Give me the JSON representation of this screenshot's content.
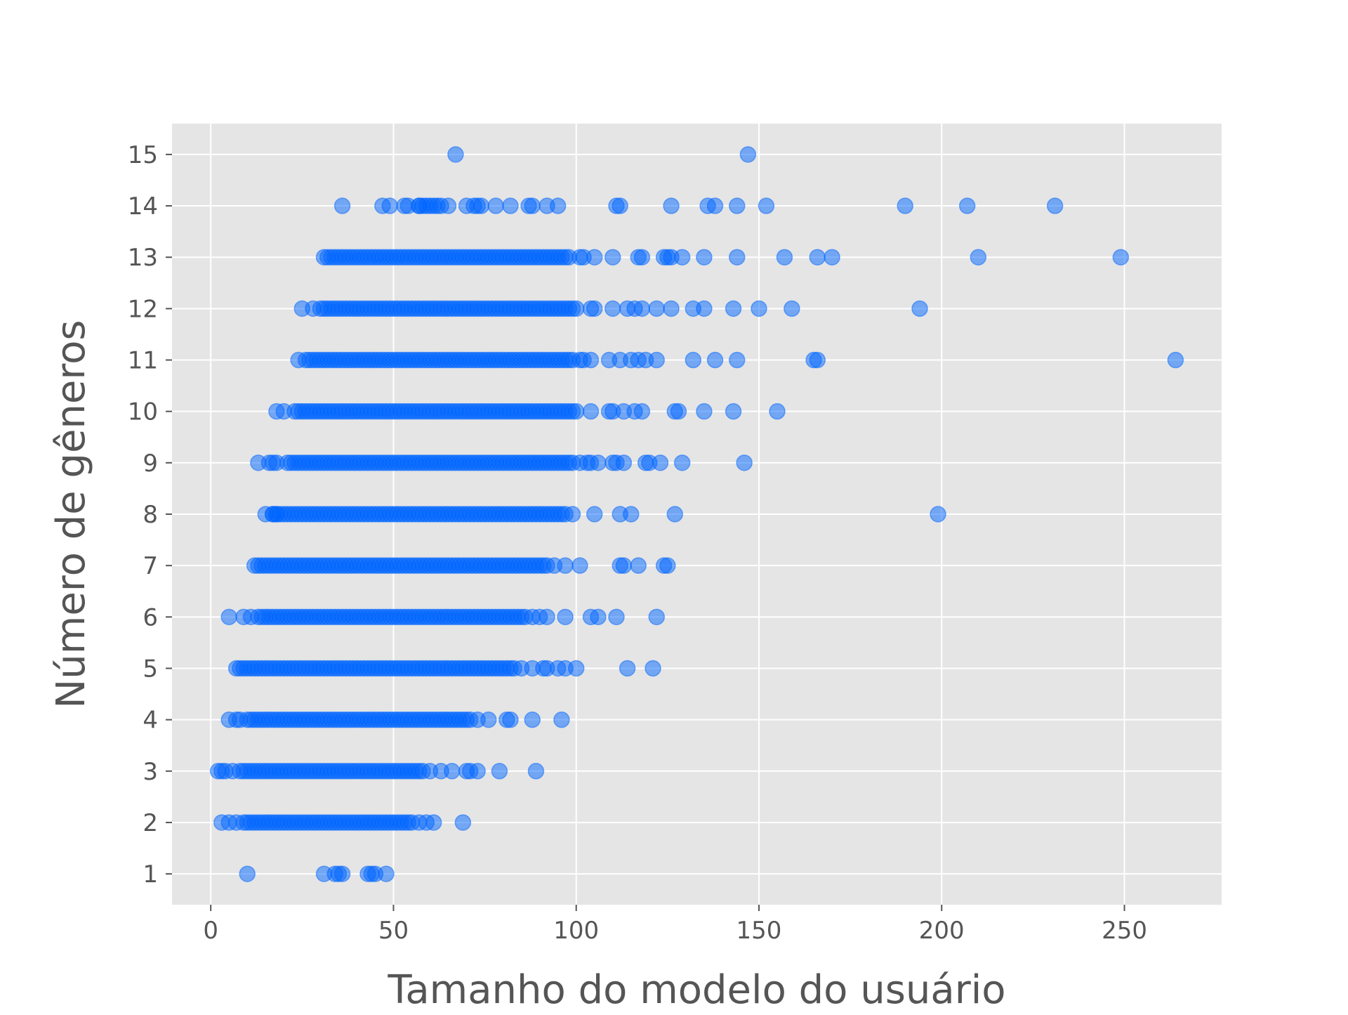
{
  "chart_data": {
    "type": "scatter",
    "title": "",
    "xlabel": "Tamanho do modelo do usuário",
    "ylabel": "Número de gêneros",
    "xlim": [
      -10.6,
      276.6
    ],
    "ylim": [
      0.4,
      15.6
    ],
    "xticks": [
      0,
      50,
      100,
      150,
      200,
      250
    ],
    "yticks": [
      1,
      2,
      3,
      4,
      5,
      6,
      7,
      8,
      9,
      10,
      11,
      12,
      13,
      14,
      15
    ],
    "grid": true,
    "style": "ggplot",
    "colors": {
      "plot_background": "#e5e5e5",
      "grid": "#ffffff",
      "marker": "#0066ff",
      "marker_alpha": 0.5,
      "tick_text": "#555555",
      "axis_label": "#555555"
    },
    "series": [
      {
        "marker": "circle",
        "ranges": [
          {
            "y": 2,
            "x_from": 10,
            "x_to": 55
          },
          {
            "y": 3,
            "x_from": 8,
            "x_to": 58
          },
          {
            "y": 4,
            "x_from": 10,
            "x_to": 70
          },
          {
            "y": 5,
            "x_from": 9,
            "x_to": 82
          },
          {
            "y": 6,
            "x_from": 13,
            "x_to": 86
          },
          {
            "y": 7,
            "x_from": 13,
            "x_to": 92
          },
          {
            "y": 8,
            "x_from": 17,
            "x_to": 97
          },
          {
            "y": 9,
            "x_from": 21,
            "x_to": 99
          },
          {
            "y": 10,
            "x_from": 24,
            "x_to": 100
          },
          {
            "y": 11,
            "x_from": 27,
            "x_to": 99
          },
          {
            "y": 12,
            "x_from": 30,
            "x_to": 100
          },
          {
            "y": 13,
            "x_from": 33,
            "x_to": 98
          },
          {
            "y": 14,
            "x_from": 57,
            "x_to": 62
          }
        ],
        "points": [
          {
            "x": 67,
            "y": 15
          },
          {
            "x": 147,
            "y": 15
          },
          {
            "x": 36,
            "y": 14
          },
          {
            "x": 47,
            "y": 14
          },
          {
            "x": 49,
            "y": 14
          },
          {
            "x": 53,
            "y": 14
          },
          {
            "x": 54,
            "y": 14
          },
          {
            "x": 57,
            "y": 14
          },
          {
            "x": 63,
            "y": 14
          },
          {
            "x": 65,
            "y": 14
          },
          {
            "x": 70,
            "y": 14
          },
          {
            "x": 72,
            "y": 14
          },
          {
            "x": 73,
            "y": 14
          },
          {
            "x": 74,
            "y": 14
          },
          {
            "x": 78,
            "y": 14
          },
          {
            "x": 82,
            "y": 14
          },
          {
            "x": 87,
            "y": 14
          },
          {
            "x": 88,
            "y": 14
          },
          {
            "x": 92,
            "y": 14
          },
          {
            "x": 95,
            "y": 14
          },
          {
            "x": 111,
            "y": 14
          },
          {
            "x": 112,
            "y": 14
          },
          {
            "x": 126,
            "y": 14
          },
          {
            "x": 136,
            "y": 14
          },
          {
            "x": 138,
            "y": 14
          },
          {
            "x": 144,
            "y": 14
          },
          {
            "x": 152,
            "y": 14
          },
          {
            "x": 190,
            "y": 14
          },
          {
            "x": 207,
            "y": 14
          },
          {
            "x": 231,
            "y": 14
          },
          {
            "x": 31,
            "y": 13
          },
          {
            "x": 32,
            "y": 13
          },
          {
            "x": 101,
            "y": 13
          },
          {
            "x": 102,
            "y": 13
          },
          {
            "x": 105,
            "y": 13
          },
          {
            "x": 110,
            "y": 13
          },
          {
            "x": 117,
            "y": 13
          },
          {
            "x": 118,
            "y": 13
          },
          {
            "x": 124,
            "y": 13
          },
          {
            "x": 125,
            "y": 13
          },
          {
            "x": 126,
            "y": 13
          },
          {
            "x": 129,
            "y": 13
          },
          {
            "x": 135,
            "y": 13
          },
          {
            "x": 144,
            "y": 13
          },
          {
            "x": 157,
            "y": 13
          },
          {
            "x": 166,
            "y": 13
          },
          {
            "x": 170,
            "y": 13
          },
          {
            "x": 210,
            "y": 13
          },
          {
            "x": 249,
            "y": 13
          },
          {
            "x": 25,
            "y": 12
          },
          {
            "x": 28,
            "y": 12
          },
          {
            "x": 104,
            "y": 12
          },
          {
            "x": 105,
            "y": 12
          },
          {
            "x": 110,
            "y": 12
          },
          {
            "x": 114,
            "y": 12
          },
          {
            "x": 116,
            "y": 12
          },
          {
            "x": 118,
            "y": 12
          },
          {
            "x": 122,
            "y": 12
          },
          {
            "x": 126,
            "y": 12
          },
          {
            "x": 132,
            "y": 12
          },
          {
            "x": 135,
            "y": 12
          },
          {
            "x": 143,
            "y": 12
          },
          {
            "x": 150,
            "y": 12
          },
          {
            "x": 159,
            "y": 12
          },
          {
            "x": 194,
            "y": 12
          },
          {
            "x": 24,
            "y": 11
          },
          {
            "x": 26,
            "y": 11
          },
          {
            "x": 101,
            "y": 11
          },
          {
            "x": 102,
            "y": 11
          },
          {
            "x": 104,
            "y": 11
          },
          {
            "x": 109,
            "y": 11
          },
          {
            "x": 112,
            "y": 11
          },
          {
            "x": 115,
            "y": 11
          },
          {
            "x": 117,
            "y": 11
          },
          {
            "x": 119,
            "y": 11
          },
          {
            "x": 122,
            "y": 11
          },
          {
            "x": 132,
            "y": 11
          },
          {
            "x": 138,
            "y": 11
          },
          {
            "x": 144,
            "y": 11
          },
          {
            "x": 165,
            "y": 11
          },
          {
            "x": 166,
            "y": 11
          },
          {
            "x": 264,
            "y": 11
          },
          {
            "x": 18,
            "y": 10
          },
          {
            "x": 20,
            "y": 10
          },
          {
            "x": 23,
            "y": 10
          },
          {
            "x": 104,
            "y": 10
          },
          {
            "x": 109,
            "y": 10
          },
          {
            "x": 110,
            "y": 10
          },
          {
            "x": 113,
            "y": 10
          },
          {
            "x": 116,
            "y": 10
          },
          {
            "x": 118,
            "y": 10
          },
          {
            "x": 127,
            "y": 10
          },
          {
            "x": 128,
            "y": 10
          },
          {
            "x": 135,
            "y": 10
          },
          {
            "x": 143,
            "y": 10
          },
          {
            "x": 155,
            "y": 10
          },
          {
            "x": 13,
            "y": 9
          },
          {
            "x": 16,
            "y": 9
          },
          {
            "x": 17,
            "y": 9
          },
          {
            "x": 18,
            "y": 9
          },
          {
            "x": 101,
            "y": 9
          },
          {
            "x": 103,
            "y": 9
          },
          {
            "x": 104,
            "y": 9
          },
          {
            "x": 106,
            "y": 9
          },
          {
            "x": 110,
            "y": 9
          },
          {
            "x": 111,
            "y": 9
          },
          {
            "x": 113,
            "y": 9
          },
          {
            "x": 119,
            "y": 9
          },
          {
            "x": 120,
            "y": 9
          },
          {
            "x": 123,
            "y": 9
          },
          {
            "x": 129,
            "y": 9
          },
          {
            "x": 146,
            "y": 9
          },
          {
            "x": 15,
            "y": 8
          },
          {
            "x": 17,
            "y": 8
          },
          {
            "x": 18,
            "y": 8
          },
          {
            "x": 99,
            "y": 8
          },
          {
            "x": 105,
            "y": 8
          },
          {
            "x": 112,
            "y": 8
          },
          {
            "x": 115,
            "y": 8
          },
          {
            "x": 127,
            "y": 8
          },
          {
            "x": 199,
            "y": 8
          },
          {
            "x": 12,
            "y": 7
          },
          {
            "x": 94,
            "y": 7
          },
          {
            "x": 97,
            "y": 7
          },
          {
            "x": 101,
            "y": 7
          },
          {
            "x": 112,
            "y": 7
          },
          {
            "x": 113,
            "y": 7
          },
          {
            "x": 117,
            "y": 7
          },
          {
            "x": 124,
            "y": 7
          },
          {
            "x": 125,
            "y": 7
          },
          {
            "x": 5,
            "y": 6
          },
          {
            "x": 9,
            "y": 6
          },
          {
            "x": 11,
            "y": 6
          },
          {
            "x": 88,
            "y": 6
          },
          {
            "x": 90,
            "y": 6
          },
          {
            "x": 92,
            "y": 6
          },
          {
            "x": 97,
            "y": 6
          },
          {
            "x": 104,
            "y": 6
          },
          {
            "x": 106,
            "y": 6
          },
          {
            "x": 111,
            "y": 6
          },
          {
            "x": 122,
            "y": 6
          },
          {
            "x": 7,
            "y": 5
          },
          {
            "x": 8,
            "y": 5
          },
          {
            "x": 83,
            "y": 5
          },
          {
            "x": 85,
            "y": 5
          },
          {
            "x": 88,
            "y": 5
          },
          {
            "x": 91,
            "y": 5
          },
          {
            "x": 92,
            "y": 5
          },
          {
            "x": 95,
            "y": 5
          },
          {
            "x": 97,
            "y": 5
          },
          {
            "x": 100,
            "y": 5
          },
          {
            "x": 114,
            "y": 5
          },
          {
            "x": 121,
            "y": 5
          },
          {
            "x": 5,
            "y": 4
          },
          {
            "x": 7,
            "y": 4
          },
          {
            "x": 8,
            "y": 4
          },
          {
            "x": 71,
            "y": 4
          },
          {
            "x": 73,
            "y": 4
          },
          {
            "x": 76,
            "y": 4
          },
          {
            "x": 81,
            "y": 4
          },
          {
            "x": 82,
            "y": 4
          },
          {
            "x": 88,
            "y": 4
          },
          {
            "x": 96,
            "y": 4
          },
          {
            "x": 2,
            "y": 3
          },
          {
            "x": 3,
            "y": 3
          },
          {
            "x": 4,
            "y": 3
          },
          {
            "x": 6,
            "y": 3
          },
          {
            "x": 60,
            "y": 3
          },
          {
            "x": 63,
            "y": 3
          },
          {
            "x": 66,
            "y": 3
          },
          {
            "x": 70,
            "y": 3
          },
          {
            "x": 71,
            "y": 3
          },
          {
            "x": 73,
            "y": 3
          },
          {
            "x": 79,
            "y": 3
          },
          {
            "x": 89,
            "y": 3
          },
          {
            "x": 3,
            "y": 2
          },
          {
            "x": 5,
            "y": 2
          },
          {
            "x": 7,
            "y": 2
          },
          {
            "x": 9,
            "y": 2
          },
          {
            "x": 57,
            "y": 2
          },
          {
            "x": 59,
            "y": 2
          },
          {
            "x": 61,
            "y": 2
          },
          {
            "x": 69,
            "y": 2
          },
          {
            "x": 10,
            "y": 1
          },
          {
            "x": 31,
            "y": 1
          },
          {
            "x": 34,
            "y": 1
          },
          {
            "x": 35,
            "y": 1
          },
          {
            "x": 36,
            "y": 1
          },
          {
            "x": 43,
            "y": 1
          },
          {
            "x": 44,
            "y": 1
          },
          {
            "x": 45,
            "y": 1
          },
          {
            "x": 48,
            "y": 1
          }
        ]
      }
    ]
  }
}
